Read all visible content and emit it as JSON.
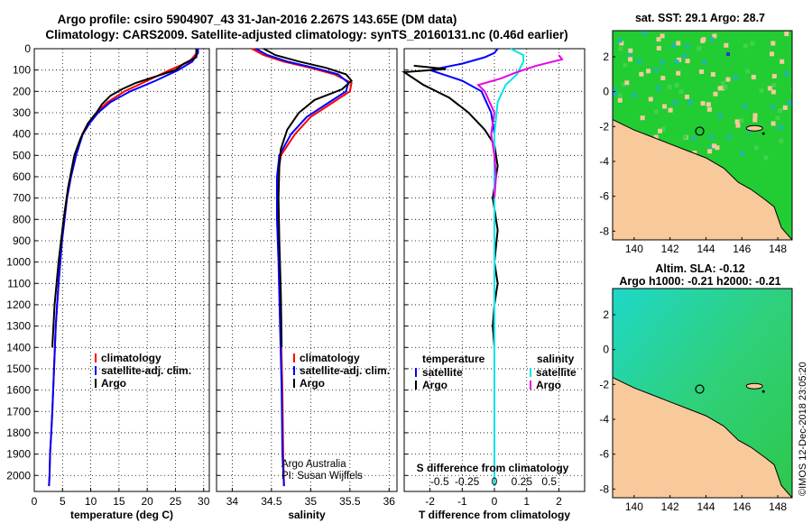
{
  "header": {
    "line1": "Argo profile: csiro 5904907_43 31-Jan-2016 2.267S 143.65E (DM data)",
    "line2": "Climatology: CARS2009. Satellite-adjusted climatology: synTS_20160131.nc (0.46d earlier)"
  },
  "colors": {
    "climatology": "#ff0000",
    "satellite": "#0000ff",
    "argo": "#000000",
    "s_satellite": "#00e5e5",
    "s_argo": "#e600e6",
    "land": "#f7c99b",
    "sst_green": "#22cc33",
    "sla_green": "#33cc66"
  },
  "chart_data": [
    {
      "type": "line",
      "id": "temperature",
      "xlabel": "temperature (deg C)",
      "ylabel": "",
      "xlim": [
        0,
        31
      ],
      "ylim": [
        2075,
        0
      ],
      "xticks": [
        0,
        5,
        10,
        15,
        20,
        25,
        30
      ],
      "yticks": [
        0,
        100,
        200,
        300,
        400,
        500,
        600,
        700,
        800,
        900,
        1000,
        1100,
        1200,
        1300,
        1400,
        1500,
        1600,
        1700,
        1800,
        1900,
        2000
      ],
      "grid": true,
      "legend_position": "lower-right",
      "legend": [
        "climatology",
        "satellite-adj. clim.",
        "Argo"
      ],
      "series": [
        {
          "name": "climatology",
          "color": "#ff0000",
          "x": [
            28.8,
            28.8,
            27.5,
            24,
            20,
            16,
            13,
            11,
            9.5,
            8.5,
            7.4,
            6.5,
            5.8,
            4.9,
            4.3,
            3.8,
            3.5,
            3.2,
            3.0,
            2.8,
            2.7,
            2.6
          ],
          "y": [
            0,
            20,
            60,
            100,
            150,
            200,
            250,
            300,
            350,
            400,
            500,
            600,
            700,
            900,
            1100,
            1300,
            1500,
            1700,
            1800,
            1900,
            2000,
            2050
          ]
        },
        {
          "name": "satellite-adj. clim.",
          "color": "#0000ff",
          "x": [
            29,
            29,
            28,
            25.5,
            21.5,
            17,
            13.5,
            11.3,
            9.8,
            8.6,
            7.4,
            6.5,
            5.8,
            4.9,
            4.3,
            3.8,
            3.5,
            3.2,
            3.0,
            2.8,
            2.7,
            2.6
          ],
          "y": [
            0,
            20,
            60,
            100,
            150,
            200,
            250,
            300,
            350,
            400,
            500,
            600,
            700,
            900,
            1100,
            1300,
            1500,
            1700,
            1800,
            1900,
            2000,
            2050
          ]
        },
        {
          "name": "Argo",
          "color": "#000000",
          "x": [
            28.7,
            28.7,
            26.5,
            25,
            21.5,
            18,
            15.5,
            13.5,
            12,
            11,
            9.5,
            8.2,
            7.1,
            6.0,
            5.2,
            4.3,
            3.6,
            3.2
          ],
          "y": [
            0,
            40,
            70,
            100,
            130,
            160,
            190,
            220,
            260,
            300,
            350,
            420,
            500,
            650,
            800,
            1000,
            1200,
            1400
          ]
        }
      ]
    },
    {
      "type": "line",
      "id": "salinity",
      "xlabel": "salinity",
      "ylabel": "",
      "xlim": [
        33.8,
        36.1
      ],
      "ylim": [
        2075,
        0
      ],
      "xticks": [
        34,
        34.5,
        35,
        35.5,
        36
      ],
      "grid": true,
      "legend_position": "lower-right",
      "legend": [
        "climatology",
        "satellite-adj. clim.",
        "Argo"
      ],
      "annotations": [
        "Argo Australia",
        "PI: Susan Wijffels"
      ],
      "series": [
        {
          "name": "climatology",
          "color": "#ff0000",
          "x": [
            34.25,
            34.4,
            34.65,
            35.0,
            35.3,
            35.52,
            35.5,
            35.25,
            35.0,
            34.8,
            34.62,
            34.58,
            34.58,
            34.6,
            34.62,
            34.64,
            34.65,
            34.66
          ],
          "y": [
            0,
            30,
            60,
            90,
            120,
            160,
            200,
            260,
            320,
            400,
            500,
            600,
            800,
            1000,
            1300,
            1600,
            1900,
            2050
          ]
        },
        {
          "name": "satellite-adj. clim.",
          "color": "#0000ff",
          "x": [
            34.3,
            34.45,
            34.7,
            35.05,
            35.35,
            35.48,
            35.45,
            35.2,
            34.95,
            34.75,
            34.6,
            34.57,
            34.57,
            34.59,
            34.61,
            34.63,
            34.64,
            34.66
          ],
          "y": [
            0,
            30,
            60,
            90,
            120,
            160,
            200,
            260,
            320,
            400,
            500,
            600,
            800,
            1000,
            1300,
            1600,
            1900,
            2050
          ]
        },
        {
          "name": "Argo",
          "color": "#000000",
          "x": [
            34.4,
            34.55,
            34.85,
            35.2,
            35.45,
            35.52,
            35.4,
            35.05,
            34.85,
            34.7,
            34.62,
            34.6,
            34.59,
            34.6,
            34.62,
            34.63
          ],
          "y": [
            0,
            30,
            60,
            90,
            120,
            150,
            190,
            240,
            300,
            380,
            470,
            550,
            700,
            900,
            1150,
            1400
          ]
        }
      ]
    },
    {
      "type": "line",
      "id": "difference",
      "xlabel": "T difference from climatology",
      "x2label": "S difference from climatology",
      "ylabel": "",
      "xlim": [
        -2.8,
        2.8
      ],
      "ylim": [
        2075,
        0
      ],
      "xticks": [
        -2,
        -1,
        0,
        1,
        2
      ],
      "x2ticks": [
        "-0.5",
        "-0.25",
        "0",
        "0.25",
        "0.5"
      ],
      "grid": true,
      "legend_left_title": "temperature",
      "legend_right_title": "salinity",
      "legend_left": [
        "satellite",
        "Argo"
      ],
      "legend_right": [
        "satellite",
        "Argo"
      ],
      "series": [
        {
          "name": "T satellite",
          "color": "#0000ff",
          "x": [
            0.1,
            0.0,
            -0.3,
            -1.0,
            -2.0,
            -1.0,
            -0.4,
            -0.1,
            0.0,
            0.0,
            0.0,
            0.0,
            0.0
          ],
          "y": [
            0,
            20,
            40,
            70,
            100,
            150,
            200,
            300,
            400,
            600,
            900,
            1200,
            1300
          ]
        },
        {
          "name": "T Argo",
          "color": "#000000",
          "x": [
            -3.0,
            -2.5,
            -1.5,
            -2.8,
            -3.0,
            -2.2,
            -1.4,
            -0.8,
            -0.3,
            0.0,
            0.1,
            -0.05,
            0.1,
            0.0,
            0.1,
            0.0,
            -0.05,
            0.0
          ],
          "y": [
            60,
            80,
            95,
            110,
            130,
            170,
            230,
            300,
            380,
            450,
            550,
            700,
            850,
            1000,
            1100,
            1200,
            1300,
            1400
          ]
        },
        {
          "name": "S satellite",
          "color": "#00e5e5",
          "x": [
            0.5,
            0.9,
            0.9,
            0.8,
            0.7,
            0.35,
            0.1,
            0.0,
            0.0,
            0.0,
            0.0,
            0.0
          ],
          "y": [
            0,
            30,
            60,
            90,
            120,
            170,
            250,
            400,
            800,
            1200,
            1600,
            2050
          ]
        },
        {
          "name": "S Argo",
          "color": "#e600e6",
          "x": [
            2.0,
            2.1,
            1.3,
            0.7,
            0.2,
            -0.5,
            -0.3,
            0.0,
            -0.1,
            0.0,
            0.05,
            0.0
          ],
          "y": [
            30,
            50,
            80,
            110,
            140,
            170,
            200,
            300,
            400,
            500,
            600,
            700
          ]
        }
      ]
    },
    {
      "type": "heatmap",
      "id": "sst_map",
      "title": "sat. SST: 29.1  Argo: 28.7",
      "xticks": [
        140,
        142,
        144,
        146,
        148
      ],
      "yticks": [
        2,
        0,
        -2,
        -4,
        -6,
        -8
      ],
      "xlim": [
        138.8,
        148.8
      ],
      "ylim": [
        -8.5,
        3.5
      ],
      "marker": {
        "lon": 143.65,
        "lat": -2.267
      }
    },
    {
      "type": "heatmap",
      "id": "sla_map",
      "title": "Altim. SLA: -0.12",
      "subtitle": "Argo h1000: -0.21 h2000: -0.21",
      "xticks": [
        140,
        142,
        144,
        146,
        148
      ],
      "yticks": [
        2,
        0,
        -2,
        -4,
        -6,
        -8
      ],
      "xlim": [
        138.8,
        148.8
      ],
      "ylim": [
        -8.5,
        3.5
      ],
      "marker": {
        "lon": 143.65,
        "lat": -2.267
      }
    }
  ],
  "footer": {
    "credit": "©IMOS 12-Dec-2018 23:05:20"
  }
}
